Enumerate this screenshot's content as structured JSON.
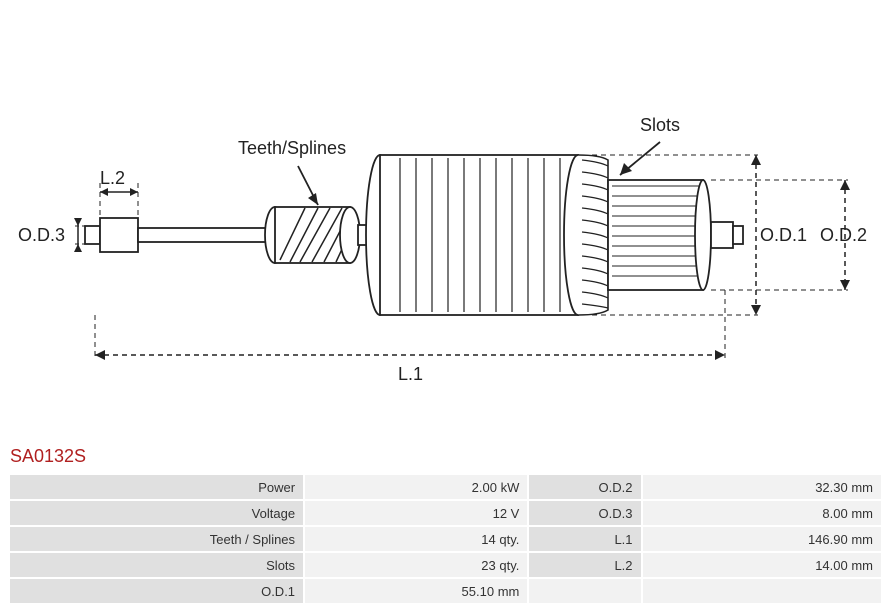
{
  "part_number": "SA0132S",
  "diagram": {
    "labels": {
      "teeth_splines": "Teeth/Splines",
      "slots": "Slots",
      "od1": "O.D.1",
      "od2": "O.D.2",
      "od3": "O.D.3",
      "l1": "L.1",
      "l2": "L.2"
    },
    "colors": {
      "stroke": "#222222",
      "fill": "#ffffff",
      "background": "#ffffff"
    },
    "line_width": 1.8,
    "dash_pattern": "5,4"
  },
  "specs": {
    "rows": [
      {
        "label1": "Power",
        "value1": "2.00 kW",
        "label2": "O.D.2",
        "value2": "32.30 mm"
      },
      {
        "label1": "Voltage",
        "value1": "12 V",
        "label2": "O.D.3",
        "value2": "8.00 mm"
      },
      {
        "label1": "Teeth / Splines",
        "value1": "14 qty.",
        "label2": "L.1",
        "value2": "146.90  mm"
      },
      {
        "label1": "Slots",
        "value1": "23  qty.",
        "label2": "L.2",
        "value2": "14.00 mm"
      },
      {
        "label1": "O.D.1",
        "value1": "55.10  mm",
        "label2": "",
        "value2": ""
      }
    ],
    "table_style": {
      "label_bg": "#e0e0e0",
      "value_bg": "#f2f2f2",
      "font_size": 13,
      "text_color": "#333333"
    }
  }
}
